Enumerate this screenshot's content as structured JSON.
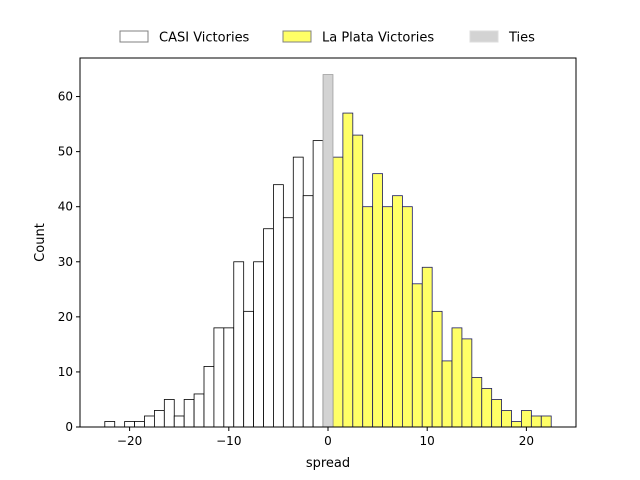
{
  "chart_data": {
    "type": "bar",
    "xlabel": "spread",
    "ylabel": "Count",
    "xlim": [
      -25,
      25
    ],
    "ylim": [
      0,
      67
    ],
    "x_ticks": [
      -20,
      -10,
      0,
      10,
      20
    ],
    "y_ticks": [
      0,
      10,
      20,
      30,
      40,
      50,
      60
    ],
    "grid": false,
    "legend": "top-center",
    "bin_width": 1,
    "series": [
      {
        "name": "CASI Victories",
        "color": "#ffffff",
        "edge": "#000000",
        "legend_edge": "#808080",
        "x": [
          -22,
          -21,
          -20,
          -19,
          -18,
          -17,
          -16,
          -15,
          -14,
          -13,
          -12,
          -11,
          -10,
          -9,
          -8,
          -7,
          -6,
          -5,
          -4,
          -3,
          -2,
          -1
        ],
        "values": [
          1,
          0,
          1,
          1,
          2,
          3,
          5,
          2,
          5,
          6,
          11,
          18,
          18,
          30,
          21,
          30,
          36,
          44,
          38,
          49,
          42,
          52
        ]
      },
      {
        "name": "La Plata Victories",
        "color": "#ffff66",
        "edge": "#1a1a5e",
        "legend_edge": "#808080",
        "x": [
          1,
          2,
          3,
          4,
          5,
          6,
          7,
          8,
          9,
          10,
          11,
          12,
          13,
          14,
          15,
          16,
          17,
          18,
          19,
          20,
          21,
          22
        ],
        "values": [
          49,
          57,
          53,
          40,
          46,
          40,
          42,
          40,
          26,
          29,
          21,
          12,
          18,
          16,
          9,
          7,
          5,
          3,
          1,
          3,
          2,
          2
        ]
      },
      {
        "name": "Ties",
        "color": "#d3d3d3",
        "edge": "#a0a0a0",
        "legend_edge": "#dddddd",
        "x": [
          0
        ],
        "values": [
          64
        ]
      }
    ]
  }
}
